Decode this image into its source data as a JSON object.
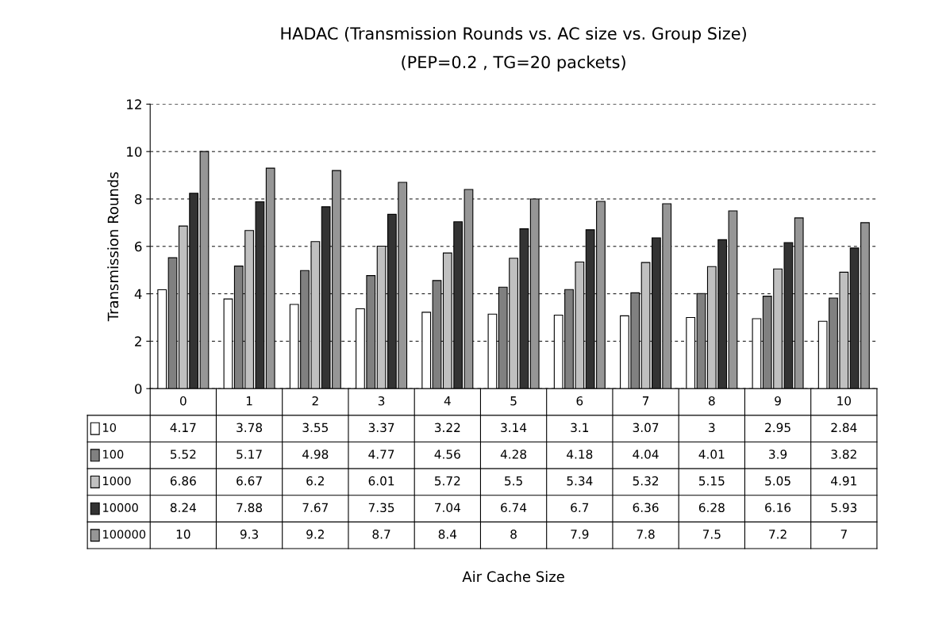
{
  "chart_data": {
    "type": "bar",
    "title": "HADAC (Transmission Rounds vs. AC size vs. Group Size)",
    "subtitle": "(PEP=0.2 , TG=20 packets)",
    "annotations": [
      "Air Cache Size"
    ],
    "ylabel": "Transmission Rounds",
    "categories": [
      "0",
      "1",
      "2",
      "3",
      "4",
      "5",
      "6",
      "7",
      "8",
      "9",
      "10"
    ],
    "series": [
      {
        "name": "10",
        "color": "#ffffff",
        "values": [
          4.17,
          3.78,
          3.55,
          3.37,
          3.22,
          3.14,
          3.1,
          3.07,
          3,
          2.95,
          2.84
        ]
      },
      {
        "name": "100",
        "color": "#808080",
        "values": [
          5.52,
          5.17,
          4.98,
          4.77,
          4.56,
          4.28,
          4.18,
          4.04,
          4.01,
          3.9,
          3.82
        ]
      },
      {
        "name": "1000",
        "color": "#c0c0c0",
        "values": [
          6.86,
          6.67,
          6.2,
          6.01,
          5.72,
          5.5,
          5.34,
          5.32,
          5.15,
          5.05,
          4.91
        ]
      },
      {
        "name": "10000",
        "color": "#333333",
        "values": [
          8.24,
          7.88,
          7.67,
          7.35,
          7.04,
          6.74,
          6.7,
          6.36,
          6.28,
          6.16,
          5.93
        ]
      },
      {
        "name": "100000",
        "color": "#969696",
        "values": [
          10,
          9.3,
          9.2,
          8.7,
          8.4,
          8,
          7.9,
          7.8,
          7.5,
          7.2,
          7
        ]
      }
    ],
    "ylim": [
      0,
      12
    ],
    "yticks": [
      0,
      2,
      4,
      6,
      8,
      10,
      12
    ],
    "grid": "y",
    "data_labels": true,
    "legend": "bottom"
  }
}
